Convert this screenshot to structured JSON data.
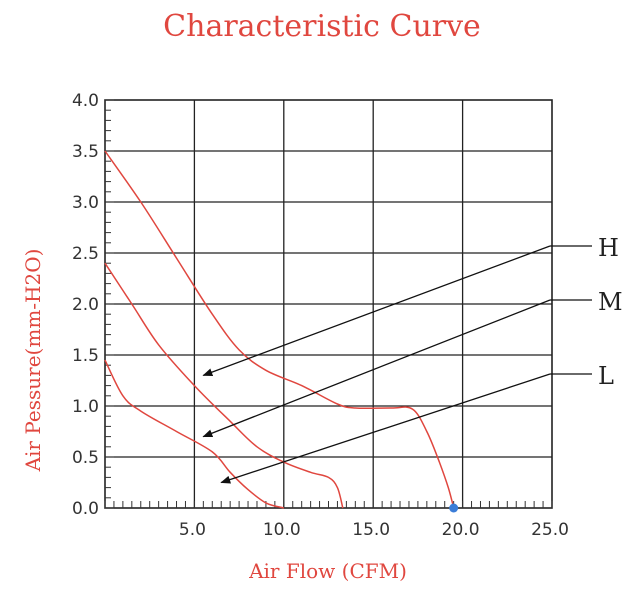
{
  "chart_data": {
    "type": "line",
    "title": "Characteristic Curve",
    "xlabel": "Air Flow (CFM)",
    "ylabel": "Air Pessure(mm-H2O)",
    "xlim": [
      0,
      25
    ],
    "ylim": [
      0,
      4
    ],
    "x_ticks": [
      "5.0",
      "10.0",
      "15.0",
      "20.0",
      "25.0"
    ],
    "y_ticks": [
      "0.0",
      "0.5",
      "1.0",
      "1.5",
      "2.0",
      "2.5",
      "3.0",
      "3.5",
      "4.0"
    ],
    "grid": true,
    "series": [
      {
        "name": "H",
        "color": "#e0473f",
        "points": [
          [
            0,
            3.5
          ],
          [
            2,
            3.0
          ],
          [
            4,
            2.45
          ],
          [
            6,
            1.9
          ],
          [
            7.5,
            1.55
          ],
          [
            9,
            1.35
          ],
          [
            11,
            1.2
          ],
          [
            13,
            1.02
          ],
          [
            14,
            0.98
          ],
          [
            16,
            0.98
          ],
          [
            17.2,
            0.97
          ],
          [
            18,
            0.75
          ],
          [
            18.7,
            0.45
          ],
          [
            19.2,
            0.2
          ],
          [
            19.5,
            0.0
          ]
        ]
      },
      {
        "name": "M",
        "color": "#e0473f",
        "points": [
          [
            0,
            2.4
          ],
          [
            1.5,
            2.0
          ],
          [
            3,
            1.6
          ],
          [
            5,
            1.2
          ],
          [
            7,
            0.85
          ],
          [
            8.5,
            0.6
          ],
          [
            10,
            0.45
          ],
          [
            11.5,
            0.35
          ],
          [
            12.5,
            0.3
          ],
          [
            13,
            0.2
          ],
          [
            13.3,
            0.0
          ]
        ]
      },
      {
        "name": "L",
        "color": "#e0473f",
        "points": [
          [
            0,
            1.45
          ],
          [
            1,
            1.1
          ],
          [
            2,
            0.95
          ],
          [
            4,
            0.75
          ],
          [
            6,
            0.55
          ],
          [
            7,
            0.35
          ],
          [
            8,
            0.18
          ],
          [
            9,
            0.05
          ],
          [
            10,
            0.0
          ]
        ]
      }
    ],
    "annotations": [
      {
        "label": "H",
        "target": [
          5.5,
          1.3
        ]
      },
      {
        "label": "M",
        "target": [
          5.5,
          0.7
        ]
      },
      {
        "label": "L",
        "target": [
          6.5,
          0.25
        ]
      }
    ],
    "highlight_point": {
      "x": 19.5,
      "y": 0.0,
      "color": "#3b7dd8"
    }
  }
}
